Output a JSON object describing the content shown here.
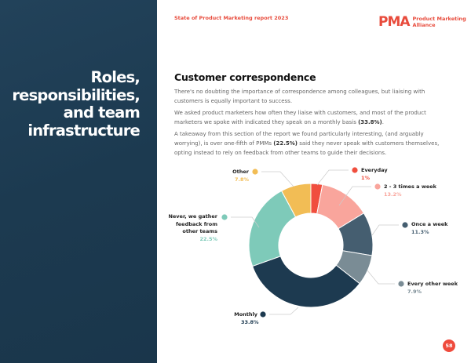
{
  "sidebar": {
    "title_lines": [
      "Roles,",
      "responsibilities,",
      "and team",
      "infrastructure"
    ],
    "color": "#1e3a4f"
  },
  "header": {
    "report": "State of Product Marketing report 2023",
    "logo_mark": "PMA",
    "logo_line1": "Product Marketing",
    "logo_line2": "Alliance",
    "accent": "#e84b3c"
  },
  "main": {
    "heading": "Customer correspondence",
    "p1": "There's no doubting the importance of correspondence among colleagues, but liaising with customers is equally important to success.",
    "p2_a": "We asked product marketers how often they liaise with customers, and most of the product marketers we spoke with indicated they speak on a monthly basis ",
    "p2_b": "(33.8%)",
    "p2_c": ".",
    "p3_a": "A takeaway from this section of the report we found particularly interesting, (and arguably worrying), is over one-fifth of PMMs ",
    "p3_b": "(22.5%)",
    "p3_c": " said they never speak with customers themselves, opting instead to rely on feedback from other teams to guide their decisions."
  },
  "chart_data": {
    "type": "pie",
    "donut": true,
    "categories": [
      "Everyday",
      "2 - 3 times a week",
      "Once a week",
      "Every other week",
      "Monthly",
      "Never, we gather feedback from other teams",
      "Other"
    ],
    "values": [
      1,
      13.2,
      11.3,
      7.9,
      33.8,
      22.5,
      7.8
    ],
    "labels": [
      "1%",
      "13.2%",
      "11.3%",
      "7.9%",
      "33.8%",
      "22.5%",
      "7.8%"
    ],
    "colors": [
      "#f04e3e",
      "#f9a59c",
      "#455e70",
      "#7a8c95",
      "#1d3a50",
      "#7ecab9",
      "#f2bd55"
    ]
  },
  "page_number": "58"
}
